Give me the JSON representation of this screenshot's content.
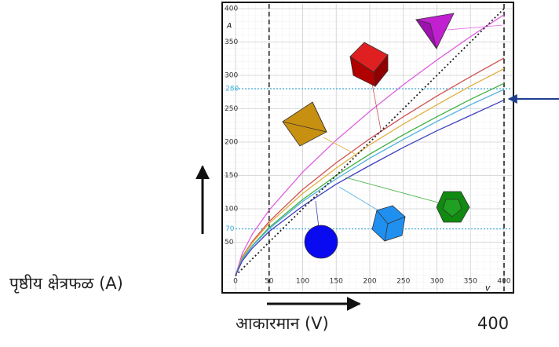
{
  "chart_data": {
    "type": "line",
    "y_label": "पृष्ठीय क्षेत्रफळ (A)",
    "x_label": "आकारमान (V)",
    "x_label_value": "400",
    "y_axis_symbol": "A",
    "x_axis_symbol": "V",
    "x": [
      0,
      10,
      25,
      50,
      100,
      150,
      200,
      250,
      300,
      350,
      400
    ],
    "series": [
      {
        "color": "#e060e0",
        "values": [
          0,
          33,
          62,
          98,
          155,
          203,
          246,
          286,
          323,
          358,
          391
        ]
      },
      {
        "color": "#d05050",
        "values": [
          0,
          28,
          51,
          81,
          129,
          169,
          205,
          238,
          269,
          298,
          326
        ]
      },
      {
        "color": "#e0b040",
        "values": [
          0,
          27,
          49,
          78,
          123,
          161,
          196,
          227,
          256,
          284,
          310
        ]
      },
      {
        "color": "#40b040",
        "values": [
          0,
          25,
          45,
          72,
          114,
          150,
          182,
          211,
          238,
          264,
          288
        ]
      },
      {
        "color": "#50b0e0",
        "values": [
          0,
          24,
          44,
          70,
          111,
          145,
          176,
          204,
          231,
          256,
          279
        ]
      },
      {
        "color": "#4040c0",
        "values": [
          0,
          22,
          41,
          66,
          104,
          137,
          165,
          192,
          217,
          240,
          263
        ]
      },
      {
        "color": "#222222",
        "dotted": true,
        "values": [
          0,
          10,
          25,
          50,
          100,
          150,
          200,
          250,
          300,
          350,
          400
        ]
      }
    ],
    "hlines": [
      280,
      70
    ],
    "hline_color": "#3fa9d8",
    "vlines": [
      50,
      400
    ],
    "xlim": [
      0,
      400
    ],
    "ylim": [
      0,
      400
    ],
    "xticks": [
      0,
      50,
      100,
      150,
      200,
      250,
      300,
      350,
      400
    ],
    "yticks": [
      50,
      100,
      150,
      200,
      250,
      300,
      350,
      400
    ],
    "grid": true
  }
}
